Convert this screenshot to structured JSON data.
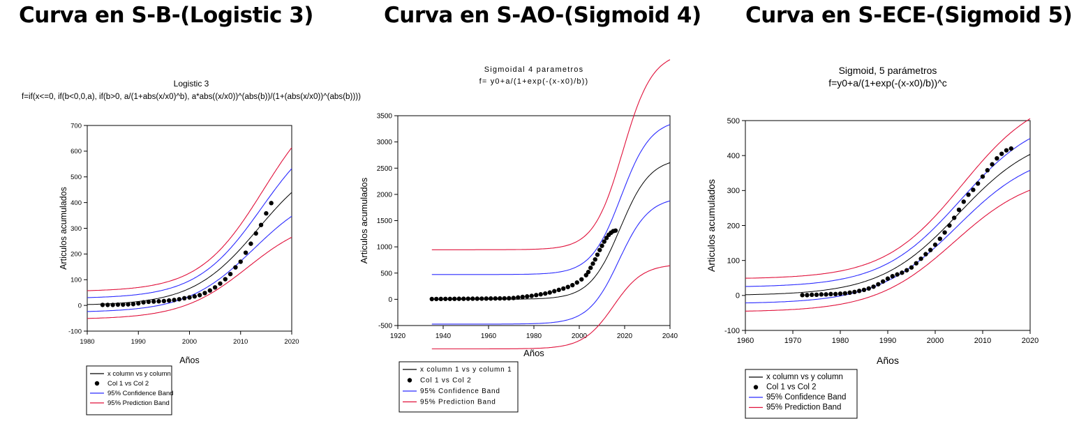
{
  "headings": [
    "Curva en S-B-(Logistic 3)",
    "Curva en S-AO-(Sigmoid 4)",
    "Curva en S-ECE-(Sigmoid 5)"
  ],
  "colors": {
    "fit": "#000000",
    "confidence": "#2b2bff",
    "prediction": "#e0103a",
    "points": "#000000"
  },
  "chart_data": [
    {
      "type": "line",
      "title": "Logistic 3",
      "subtitle": "f=if(x<=0, if(b<0,0,a), if(b>0, a/(1+abs(x/x0)^b), a*abs((x/x0))^(abs(b))/(1+(abs(x/x0))^(abs(b))))",
      "xlabel": "Años",
      "ylabel": "Articulos acumulados",
      "xlim": [
        1980,
        2020
      ],
      "ylim": [
        -100,
        700
      ],
      "xticks": [
        1980,
        1990,
        2000,
        2010,
        2020
      ],
      "yticks": [
        -100,
        0,
        100,
        200,
        300,
        400,
        500,
        600,
        700
      ],
      "model": {
        "kind": "logistic",
        "a": 600,
        "x0": 2013.5,
        "b": 0.155,
        "curve_start": 1980,
        "curve_end": 2020,
        "confidence_width": 18,
        "prediction_width": 33,
        "prediction_floor": 9
      },
      "points": {
        "x": [
          1983,
          1984,
          1985,
          1986,
          1987,
          1988,
          1989,
          1990,
          1991,
          1992,
          1993,
          1994,
          1995,
          1996,
          1997,
          1998,
          1999,
          2000,
          2001,
          2002,
          2003,
          2004,
          2005,
          2006,
          2007,
          2008,
          2009,
          2010,
          2011,
          2012,
          2013,
          2014,
          2015,
          2016
        ],
        "y": [
          2,
          2,
          2,
          3,
          3,
          4,
          5,
          8,
          12,
          14,
          15,
          16,
          17,
          19,
          21,
          24,
          28,
          31,
          35,
          40,
          48,
          58,
          70,
          85,
          102,
          122,
          148,
          170,
          205,
          240,
          280,
          313,
          358,
          398
        ]
      },
      "legend": [
        "x column vs y column",
        "Col 1 vs Col 2",
        "95% Confidence Band",
        "95% Prediction Band"
      ]
    },
    {
      "type": "line",
      "title": "Sigmoidal 4 parametros",
      "subtitle": "f= y0+a/(1+exp(-(x-x0)/b))",
      "xlabel": "Años",
      "ylabel": "Articulos acumulados",
      "xlim": [
        1920,
        2040
      ],
      "ylim": [
        -500,
        3500
      ],
      "xticks": [
        1920,
        1940,
        1960,
        1980,
        2000,
        2020,
        2040
      ],
      "yticks": [
        -500,
        0,
        500,
        1000,
        1500,
        2000,
        2500,
        3000,
        3500
      ],
      "model": {
        "kind": "logistic",
        "a": 2700,
        "x0": 2018,
        "b": 0.15,
        "curve_start": 1935,
        "curve_end": 2040,
        "confidence_width": 10,
        "prediction_width": 40,
        "prediction_floor": 35
      },
      "points": {
        "x": [
          1935,
          1937,
          1939,
          1941,
          1943,
          1945,
          1947,
          1949,
          1951,
          1953,
          1955,
          1957,
          1959,
          1961,
          1963,
          1965,
          1967,
          1969,
          1971,
          1973,
          1975,
          1977,
          1979,
          1981,
          1983,
          1985,
          1987,
          1989,
          1991,
          1993,
          1995,
          1997,
          1999,
          2001,
          2003,
          2004,
          2005,
          2006,
          2007,
          2008,
          2009,
          2010,
          2011,
          2012,
          2013,
          2014,
          2015,
          2016
        ],
        "y": [
          5,
          6,
          7,
          8,
          8,
          9,
          10,
          10,
          11,
          12,
          12,
          13,
          14,
          15,
          16,
          17,
          18,
          20,
          25,
          35,
          45,
          55,
          65,
          80,
          95,
          110,
          130,
          155,
          180,
          205,
          235,
          270,
          320,
          380,
          460,
          520,
          600,
          680,
          760,
          850,
          940,
          1020,
          1100,
          1170,
          1230,
          1270,
          1300,
          1310
        ]
      },
      "legend": [
        "x column 1 vs y column 1",
        "Col 1 vs Col 2",
        "95% Confidence Band",
        "95% Prediction Band"
      ]
    },
    {
      "type": "line",
      "title": "Sigmoid, 5 parámetros",
      "subtitle": "f=y0+a/(1+exp(-(x-x0)/b))^c",
      "xlabel": "Años",
      "ylabel": "Articulos acumulados",
      "xlim": [
        1960,
        2020
      ],
      "ylim": [
        -100,
        500
      ],
      "xticks": [
        1960,
        1970,
        1980,
        1990,
        2000,
        2010,
        2020
      ],
      "yticks": [
        -100,
        0,
        100,
        200,
        300,
        400,
        500
      ],
      "model": {
        "kind": "logistic",
        "a": 470,
        "x0": 2005,
        "b": 0.12,
        "curve_start": 1960,
        "curve_end": 2020,
        "confidence_width": 6,
        "prediction_width": 15,
        "prediction_floor": 10
      },
      "points": {
        "x": [
          1972,
          1973,
          1974,
          1975,
          1976,
          1977,
          1978,
          1979,
          1980,
          1981,
          1982,
          1983,
          1984,
          1985,
          1986,
          1987,
          1988,
          1989,
          1990,
          1991,
          1992,
          1993,
          1994,
          1995,
          1996,
          1997,
          1998,
          1999,
          2000,
          2001,
          2002,
          2003,
          2004,
          2005,
          2006,
          2007,
          2008,
          2009,
          2010,
          2011,
          2012,
          2013,
          2014,
          2015,
          2016
        ],
        "y": [
          1,
          1,
          2,
          2,
          3,
          3,
          4,
          4,
          5,
          6,
          8,
          10,
          13,
          16,
          20,
          25,
          32,
          40,
          48,
          55,
          60,
          65,
          72,
          80,
          92,
          105,
          118,
          130,
          145,
          162,
          180,
          200,
          222,
          245,
          268,
          288,
          302,
          320,
          340,
          358,
          375,
          392,
          405,
          415,
          420
        ]
      },
      "legend": [
        "x column vs y column",
        "Col 1 vs Col 2",
        "95% Confidence Band",
        "95% Prediction Band"
      ]
    }
  ]
}
